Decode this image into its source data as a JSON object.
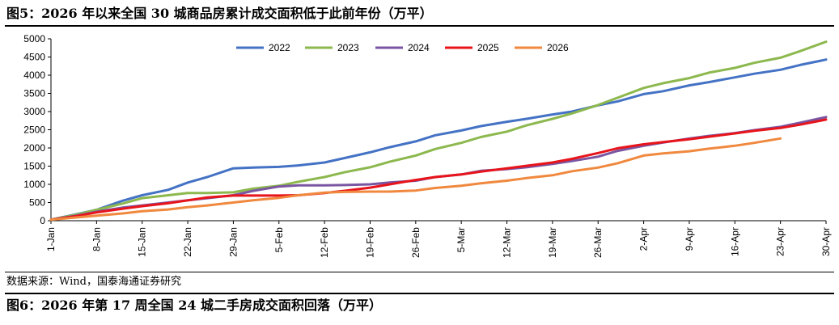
{
  "figure5": {
    "title": "图5：2026 年以来全国 30 城商品房累计成交面积低于此前年份（万平）",
    "source": "数据来源：Wind，国泰海通证券研究"
  },
  "figure6": {
    "title": "图6：2026 年第 17 周全国 24 城二手房成交面积回落（万平）"
  },
  "chart_data": {
    "type": "line",
    "title": "",
    "xlabel": "",
    "ylabel": "",
    "ylim": [
      0,
      5000
    ],
    "yticks": [
      0,
      500,
      1000,
      1500,
      2000,
      2500,
      3000,
      3500,
      4000,
      4500,
      5000
    ],
    "xlim": [
      1,
      120
    ],
    "x_unit": "day of year",
    "xtick_labels": [
      "1-Jan",
      "8-Jan",
      "15-Jan",
      "22-Jan",
      "29-Jan",
      "5-Feb",
      "12-Feb",
      "19-Feb",
      "26-Feb",
      "5-Mar",
      "12-Mar",
      "19-Mar",
      "26-Mar",
      "2-Apr",
      "9-Apr",
      "16-Apr",
      "23-Apr",
      "30-Apr"
    ],
    "xtick_days": [
      1,
      8,
      15,
      22,
      29,
      36,
      43,
      50,
      57,
      64,
      71,
      78,
      85,
      92,
      99,
      106,
      113,
      120
    ],
    "grid": false,
    "legend": "top",
    "series": [
      {
        "name": "2022",
        "color": "#4472C4",
        "x": [
          1,
          5,
          8,
          12,
          15,
          19,
          22,
          25,
          29,
          32,
          36,
          39,
          43,
          46,
          50,
          53,
          57,
          60,
          64,
          67,
          71,
          74,
          78,
          81,
          85,
          88,
          92,
          95,
          99,
          102,
          106,
          109,
          113,
          116,
          120
        ],
        "y": [
          30,
          180,
          300,
          550,
          700,
          850,
          1050,
          1200,
          1440,
          1460,
          1480,
          1520,
          1600,
          1720,
          1880,
          2020,
          2180,
          2350,
          2480,
          2600,
          2720,
          2800,
          2920,
          3000,
          3170,
          3280,
          3480,
          3560,
          3720,
          3810,
          3940,
          4040,
          4150,
          4280,
          4430
        ]
      },
      {
        "name": "2023",
        "color": "#8CB84E",
        "x": [
          1,
          5,
          8,
          12,
          15,
          19,
          22,
          25,
          29,
          32,
          36,
          39,
          43,
          46,
          50,
          53,
          57,
          60,
          64,
          67,
          71,
          74,
          78,
          81,
          85,
          88,
          92,
          95,
          99,
          102,
          106,
          109,
          113,
          116,
          120
        ],
        "y": [
          30,
          170,
          300,
          470,
          620,
          700,
          760,
          760,
          780,
          880,
          960,
          1070,
          1200,
          1330,
          1470,
          1620,
          1790,
          1970,
          2140,
          2300,
          2450,
          2620,
          2800,
          2950,
          3180,
          3380,
          3650,
          3780,
          3920,
          4070,
          4200,
          4340,
          4480,
          4660,
          4920
        ]
      },
      {
        "name": "2024",
        "color": "#7A56A2",
        "x": [
          1,
          5,
          8,
          12,
          15,
          19,
          22,
          25,
          29,
          32,
          36,
          39,
          43,
          46,
          50,
          53,
          57,
          60,
          64,
          67,
          71,
          74,
          78,
          81,
          85,
          88,
          92,
          95,
          99,
          102,
          106,
          109,
          113,
          116,
          120
        ],
        "y": [
          30,
          140,
          250,
          360,
          420,
          500,
          560,
          620,
          700,
          820,
          940,
          970,
          970,
          980,
          1000,
          1050,
          1100,
          1200,
          1270,
          1370,
          1420,
          1470,
          1560,
          1640,
          1760,
          1920,
          2060,
          2150,
          2260,
          2330,
          2410,
          2490,
          2580,
          2690,
          2850
        ]
      },
      {
        "name": "2025",
        "color": "#E8141B",
        "x": [
          1,
          5,
          8,
          12,
          15,
          19,
          22,
          25,
          29,
          32,
          36,
          39,
          43,
          46,
          50,
          53,
          57,
          60,
          64,
          67,
          71,
          74,
          78,
          81,
          85,
          88,
          92,
          95,
          99,
          102,
          106,
          109,
          113,
          116,
          120
        ],
        "y": [
          30,
          130,
          230,
          330,
          400,
          480,
          560,
          640,
          690,
          690,
          690,
          700,
          760,
          820,
          910,
          1000,
          1120,
          1200,
          1270,
          1350,
          1440,
          1510,
          1600,
          1700,
          1860,
          1990,
          2100,
          2160,
          2240,
          2310,
          2400,
          2470,
          2550,
          2640,
          2780
        ]
      },
      {
        "name": "2026",
        "color": "#F0883E",
        "x": [
          1,
          5,
          8,
          12,
          15,
          19,
          22,
          25,
          29,
          32,
          36,
          39,
          43,
          46,
          50,
          53,
          57,
          60,
          64,
          67,
          71,
          74,
          78,
          81,
          85,
          88,
          92,
          95,
          99,
          102,
          106,
          109,
          113
        ],
        "y": [
          30,
          90,
          140,
          200,
          260,
          310,
          370,
          420,
          500,
          560,
          630,
          700,
          770,
          790,
          800,
          800,
          830,
          900,
          960,
          1030,
          1100,
          1170,
          1250,
          1360,
          1460,
          1580,
          1790,
          1850,
          1910,
          1980,
          2060,
          2140,
          2260
        ]
      }
    ]
  }
}
